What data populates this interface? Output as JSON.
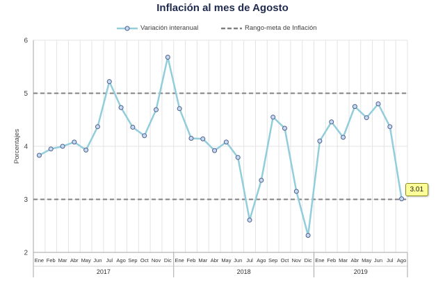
{
  "chart_data": {
    "type": "line",
    "title": "Inflación al mes de Agosto",
    "ylabel": "Porcentajes",
    "ylim": [
      2,
      6
    ],
    "yticks": [
      "2",
      "3",
      "4",
      "5",
      "6"
    ],
    "grid": true,
    "legend_position": "top",
    "years": [
      {
        "label": "2017",
        "months": [
          "Ene",
          "Feb",
          "Mar",
          "Abr",
          "May",
          "Jun",
          "Jul",
          "Ago",
          "Sep",
          "Oct",
          "Nov",
          "Dic"
        ]
      },
      {
        "label": "2018",
        "months": [
          "Ene",
          "Feb",
          "Mar",
          "Abr",
          "May",
          "Jun",
          "Jul",
          "Ago",
          "Sep",
          "Oct",
          "Nov",
          "Dic"
        ]
      },
      {
        "label": "2019",
        "months": [
          "Ene",
          "Feb",
          "Mar",
          "Abr",
          "May",
          "Jun",
          "Jul",
          "Ago"
        ]
      }
    ],
    "series": [
      {
        "name": "Variación interanual",
        "color": "#92cddc",
        "values": [
          3.83,
          3.95,
          4.0,
          4.08,
          3.93,
          4.37,
          5.22,
          4.73,
          4.36,
          4.2,
          4.69,
          5.68,
          4.71,
          4.15,
          4.14,
          3.92,
          4.08,
          3.79,
          2.61,
          3.36,
          4.55,
          4.34,
          3.15,
          2.32,
          4.1,
          4.46,
          4.17,
          4.75,
          4.54,
          4.8,
          4.37,
          3.01
        ]
      }
    ],
    "reference_lines": [
      {
        "name": "Rango-meta de Inflación",
        "values": [
          3,
          5
        ],
        "color": "#808080"
      }
    ],
    "annotation": {
      "text": "3.01"
    }
  }
}
